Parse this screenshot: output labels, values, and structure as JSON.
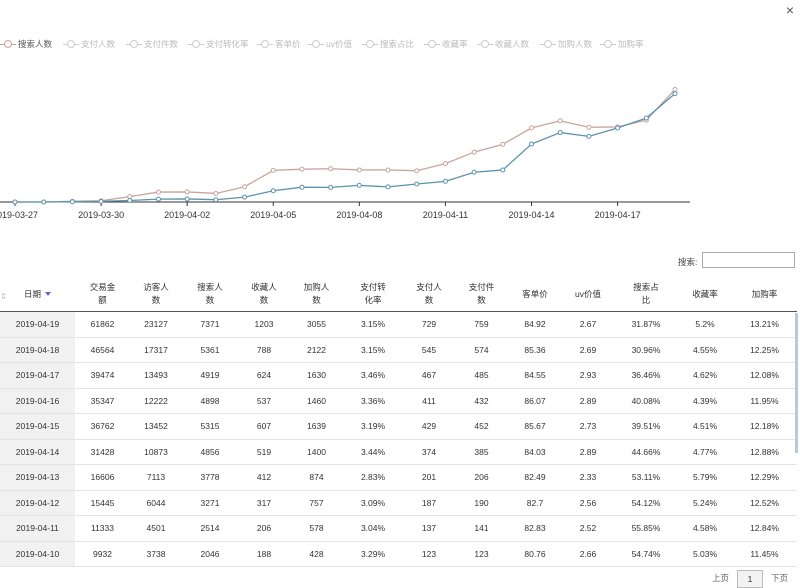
{
  "window": {
    "close_glyph": "×"
  },
  "legend": [
    {
      "label": "搜索人数",
      "active": true
    },
    {
      "label": "支付人数",
      "active": false
    },
    {
      "label": "支付件数",
      "active": false
    },
    {
      "label": "支付转化率",
      "active": false
    },
    {
      "label": "客单价",
      "active": false
    },
    {
      "label": "uv价值",
      "active": false
    },
    {
      "label": "搜索占比",
      "active": false
    },
    {
      "label": "收藏率",
      "active": false
    },
    {
      "label": "收藏人数",
      "active": false
    },
    {
      "label": "加购人数",
      "active": false
    },
    {
      "label": "加购率",
      "active": false
    }
  ],
  "chart_data": {
    "type": "line",
    "x": [
      "2019-03-27",
      "2019-03-28",
      "2019-03-29",
      "2019-03-30",
      "2019-03-31",
      "2019-04-01",
      "2019-04-02",
      "2019-04-03",
      "2019-04-04",
      "2019-04-05",
      "2019-04-06",
      "2019-04-07",
      "2019-04-08",
      "2019-04-09",
      "2019-04-10",
      "2019-04-11",
      "2019-04-12",
      "2019-04-13",
      "2019-04-14",
      "2019-04-15",
      "2019-04-16",
      "2019-04-17",
      "2019-04-18",
      "2019-04-19"
    ],
    "tick_labels": [
      "2019-03-27",
      "2019-03-30",
      "2019-04-02",
      "2019-04-05",
      "2019-04-08",
      "2019-04-11",
      "2019-04-14",
      "2019-04-17"
    ],
    "series": [
      {
        "name": "搜索人数",
        "color": "#c9a49c",
        "values": [
          0,
          0,
          50,
          80,
          350,
          650,
          660,
          560,
          1000,
          2070,
          2150,
          2180,
          2100,
          2100,
          2046,
          2514,
          3271,
          3778,
          4856,
          5315,
          4898,
          4919,
          5361,
          7371
        ]
      },
      {
        "name": "",
        "color": "#5b93ad",
        "values": [
          0,
          0,
          20,
          40,
          100,
          190,
          200,
          150,
          320,
          740,
          970,
          960,
          1090,
          990,
          1180,
          1350,
          1950,
          2100,
          3800,
          4550,
          4300,
          4850,
          5500,
          7100
        ]
      }
    ],
    "ylim": [
      0,
      7600
    ]
  },
  "search": {
    "label": "搜索:",
    "value": ""
  },
  "table": {
    "columns": [
      "日期",
      "交易金额",
      "访客人数",
      "搜索人数",
      "收藏人数",
      "加购人数",
      "支付转化率",
      "支付人数",
      "支付件数",
      "客单价",
      "uv价值",
      "搜索占比",
      "收藏率",
      "加购率"
    ],
    "rows": [
      [
        "2019-04-19",
        "61862",
        "23127",
        "7371",
        "1203",
        "3055",
        "3.15%",
        "729",
        "759",
        "84.92",
        "2.67",
        "31.87%",
        "5.2%",
        "13.21%"
      ],
      [
        "2019-04-18",
        "46564",
        "17317",
        "5361",
        "788",
        "2122",
        "3.15%",
        "545",
        "574",
        "85.36",
        "2.69",
        "30.96%",
        "4.55%",
        "12.25%"
      ],
      [
        "2019-04-17",
        "39474",
        "13493",
        "4919",
        "624",
        "1630",
        "3.46%",
        "467",
        "485",
        "84.55",
        "2.93",
        "36.46%",
        "4.62%",
        "12.08%"
      ],
      [
        "2019-04-16",
        "35347",
        "12222",
        "4898",
        "537",
        "1460",
        "3.36%",
        "411",
        "432",
        "86.07",
        "2.89",
        "40.08%",
        "4.39%",
        "11.95%"
      ],
      [
        "2019-04-15",
        "36762",
        "13452",
        "5315",
        "607",
        "1639",
        "3.19%",
        "429",
        "452",
        "85.67",
        "2.73",
        "39.51%",
        "4.51%",
        "12.18%"
      ],
      [
        "2019-04-14",
        "31428",
        "10873",
        "4856",
        "519",
        "1400",
        "3.44%",
        "374",
        "385",
        "84.03",
        "2.89",
        "44.66%",
        "4.77%",
        "12.88%"
      ],
      [
        "2019-04-13",
        "16606",
        "7113",
        "3778",
        "412",
        "874",
        "2.83%",
        "201",
        "206",
        "82.49",
        "2.33",
        "53.11%",
        "5.79%",
        "12.29%"
      ],
      [
        "2019-04-12",
        "15445",
        "6044",
        "3271",
        "317",
        "757",
        "3.09%",
        "187",
        "190",
        "82.7",
        "2.56",
        "54.12%",
        "5.24%",
        "12.52%"
      ],
      [
        "2019-04-11",
        "11333",
        "4501",
        "2514",
        "206",
        "578",
        "3.04%",
        "137",
        "141",
        "82.83",
        "2.52",
        "55.85%",
        "4.58%",
        "12.84%"
      ],
      [
        "2019-04-10",
        "9932",
        "3738",
        "2046",
        "188",
        "428",
        "3.29%",
        "123",
        "123",
        "80.76",
        "2.66",
        "54.74%",
        "5.03%",
        "11.45%"
      ]
    ]
  },
  "pagination": {
    "prev": "上页",
    "page": "1",
    "next": "下页"
  }
}
